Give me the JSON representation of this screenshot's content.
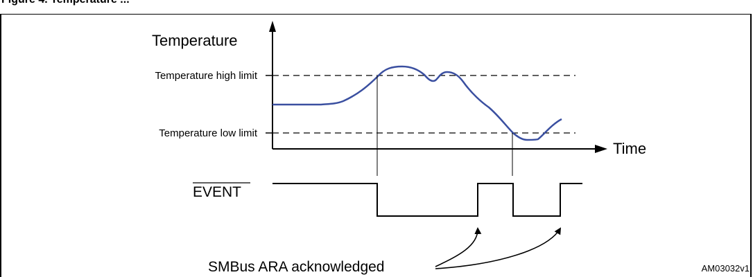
{
  "figure": {
    "caption_fragment": "Figure 4. Temperature ...",
    "reference_id": "AM03032v1"
  },
  "axes": {
    "y_label": "Temperature",
    "x_label": "Time"
  },
  "limits": {
    "high_label": "Temperature high limit",
    "low_label": "Temperature low limit"
  },
  "signal": {
    "name": "EVENT",
    "overbar": true,
    "levels": [
      "high",
      "low",
      "high",
      "low",
      "high"
    ],
    "annotation": "SMBus ARA acknowledged"
  },
  "colors": {
    "curve": "#3a4fa0",
    "lines": "#000000",
    "dashed": "#000000",
    "background": "#ffffff"
  }
}
